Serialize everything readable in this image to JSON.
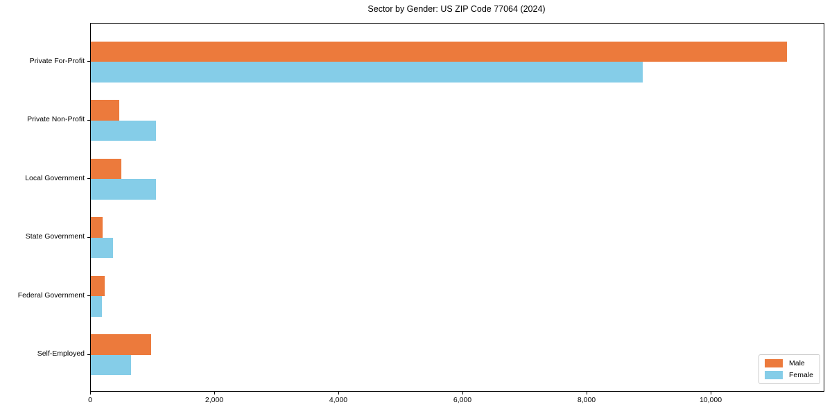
{
  "chart_data": {
    "type": "bar",
    "orientation": "horizontal",
    "title": "Sector by Gender: US ZIP Code 77064 (2024)",
    "categories": [
      "Private For-Profit",
      "Private Non-Profit",
      "Local Government",
      "State Government",
      "Federal Government",
      "Self-Employed"
    ],
    "series": [
      {
        "name": "Male",
        "color": "#ec7a3c",
        "values": [
          11220,
          460,
          495,
          190,
          225,
          975
        ]
      },
      {
        "name": "Female",
        "color": "#85cde8",
        "values": [
          8890,
          1050,
          1055,
          360,
          180,
          645
        ]
      }
    ],
    "xlabel": "",
    "ylabel": "",
    "xlim": [
      0,
      11810
    ],
    "x_ticks": [
      0,
      2000,
      4000,
      6000,
      8000,
      10000
    ],
    "x_tick_labels": [
      "0",
      "2,000",
      "4,000",
      "6,000",
      "8,000",
      "10,000"
    ],
    "grid": false,
    "legend": {
      "position": "lower right",
      "entries": [
        "Male",
        "Female"
      ]
    },
    "colors": {
      "male": "#ec7a3c",
      "female": "#85cde8",
      "spine": "#000000",
      "background": "#ffffff",
      "legend_border": "#cccccc"
    }
  }
}
